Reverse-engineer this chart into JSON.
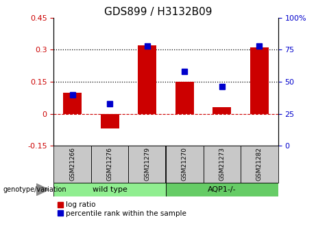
{
  "title": "GDS899 / H3132B09",
  "samples": [
    "GSM21266",
    "GSM21276",
    "GSM21279",
    "GSM21270",
    "GSM21273",
    "GSM21282"
  ],
  "log_ratios": [
    0.1,
    -0.07,
    0.32,
    0.15,
    0.03,
    0.31
  ],
  "percentile_ranks": [
    40,
    33,
    78,
    58,
    46,
    78
  ],
  "n_group1": 3,
  "n_group2": 3,
  "group1_label": "wild type",
  "group2_label": "AQP1-/-",
  "genotype_label": "genotype/variation",
  "bar_color": "#cc0000",
  "dot_color": "#0000cc",
  "ylim_left": [
    -0.15,
    0.45
  ],
  "ylim_right": [
    0,
    100
  ],
  "yticks_left": [
    -0.15,
    0.0,
    0.15,
    0.3,
    0.45
  ],
  "ytick_left_labels": [
    "-0.15",
    "0",
    "0.15",
    "0.3",
    "0.45"
  ],
  "yticks_right": [
    0,
    25,
    50,
    75,
    100
  ],
  "ytick_right_labels": [
    "0",
    "25",
    "50",
    "75",
    "100%"
  ],
  "hline_vals": [
    0.15,
    0.3
  ],
  "group1_color": "#90ee90",
  "group2_color": "#66cc66",
  "sample_box_color": "#c8c8c8",
  "legend_log_ratio": "log ratio",
  "legend_percentile": "percentile rank within the sample",
  "bar_width": 0.5,
  "dot_size": 6
}
